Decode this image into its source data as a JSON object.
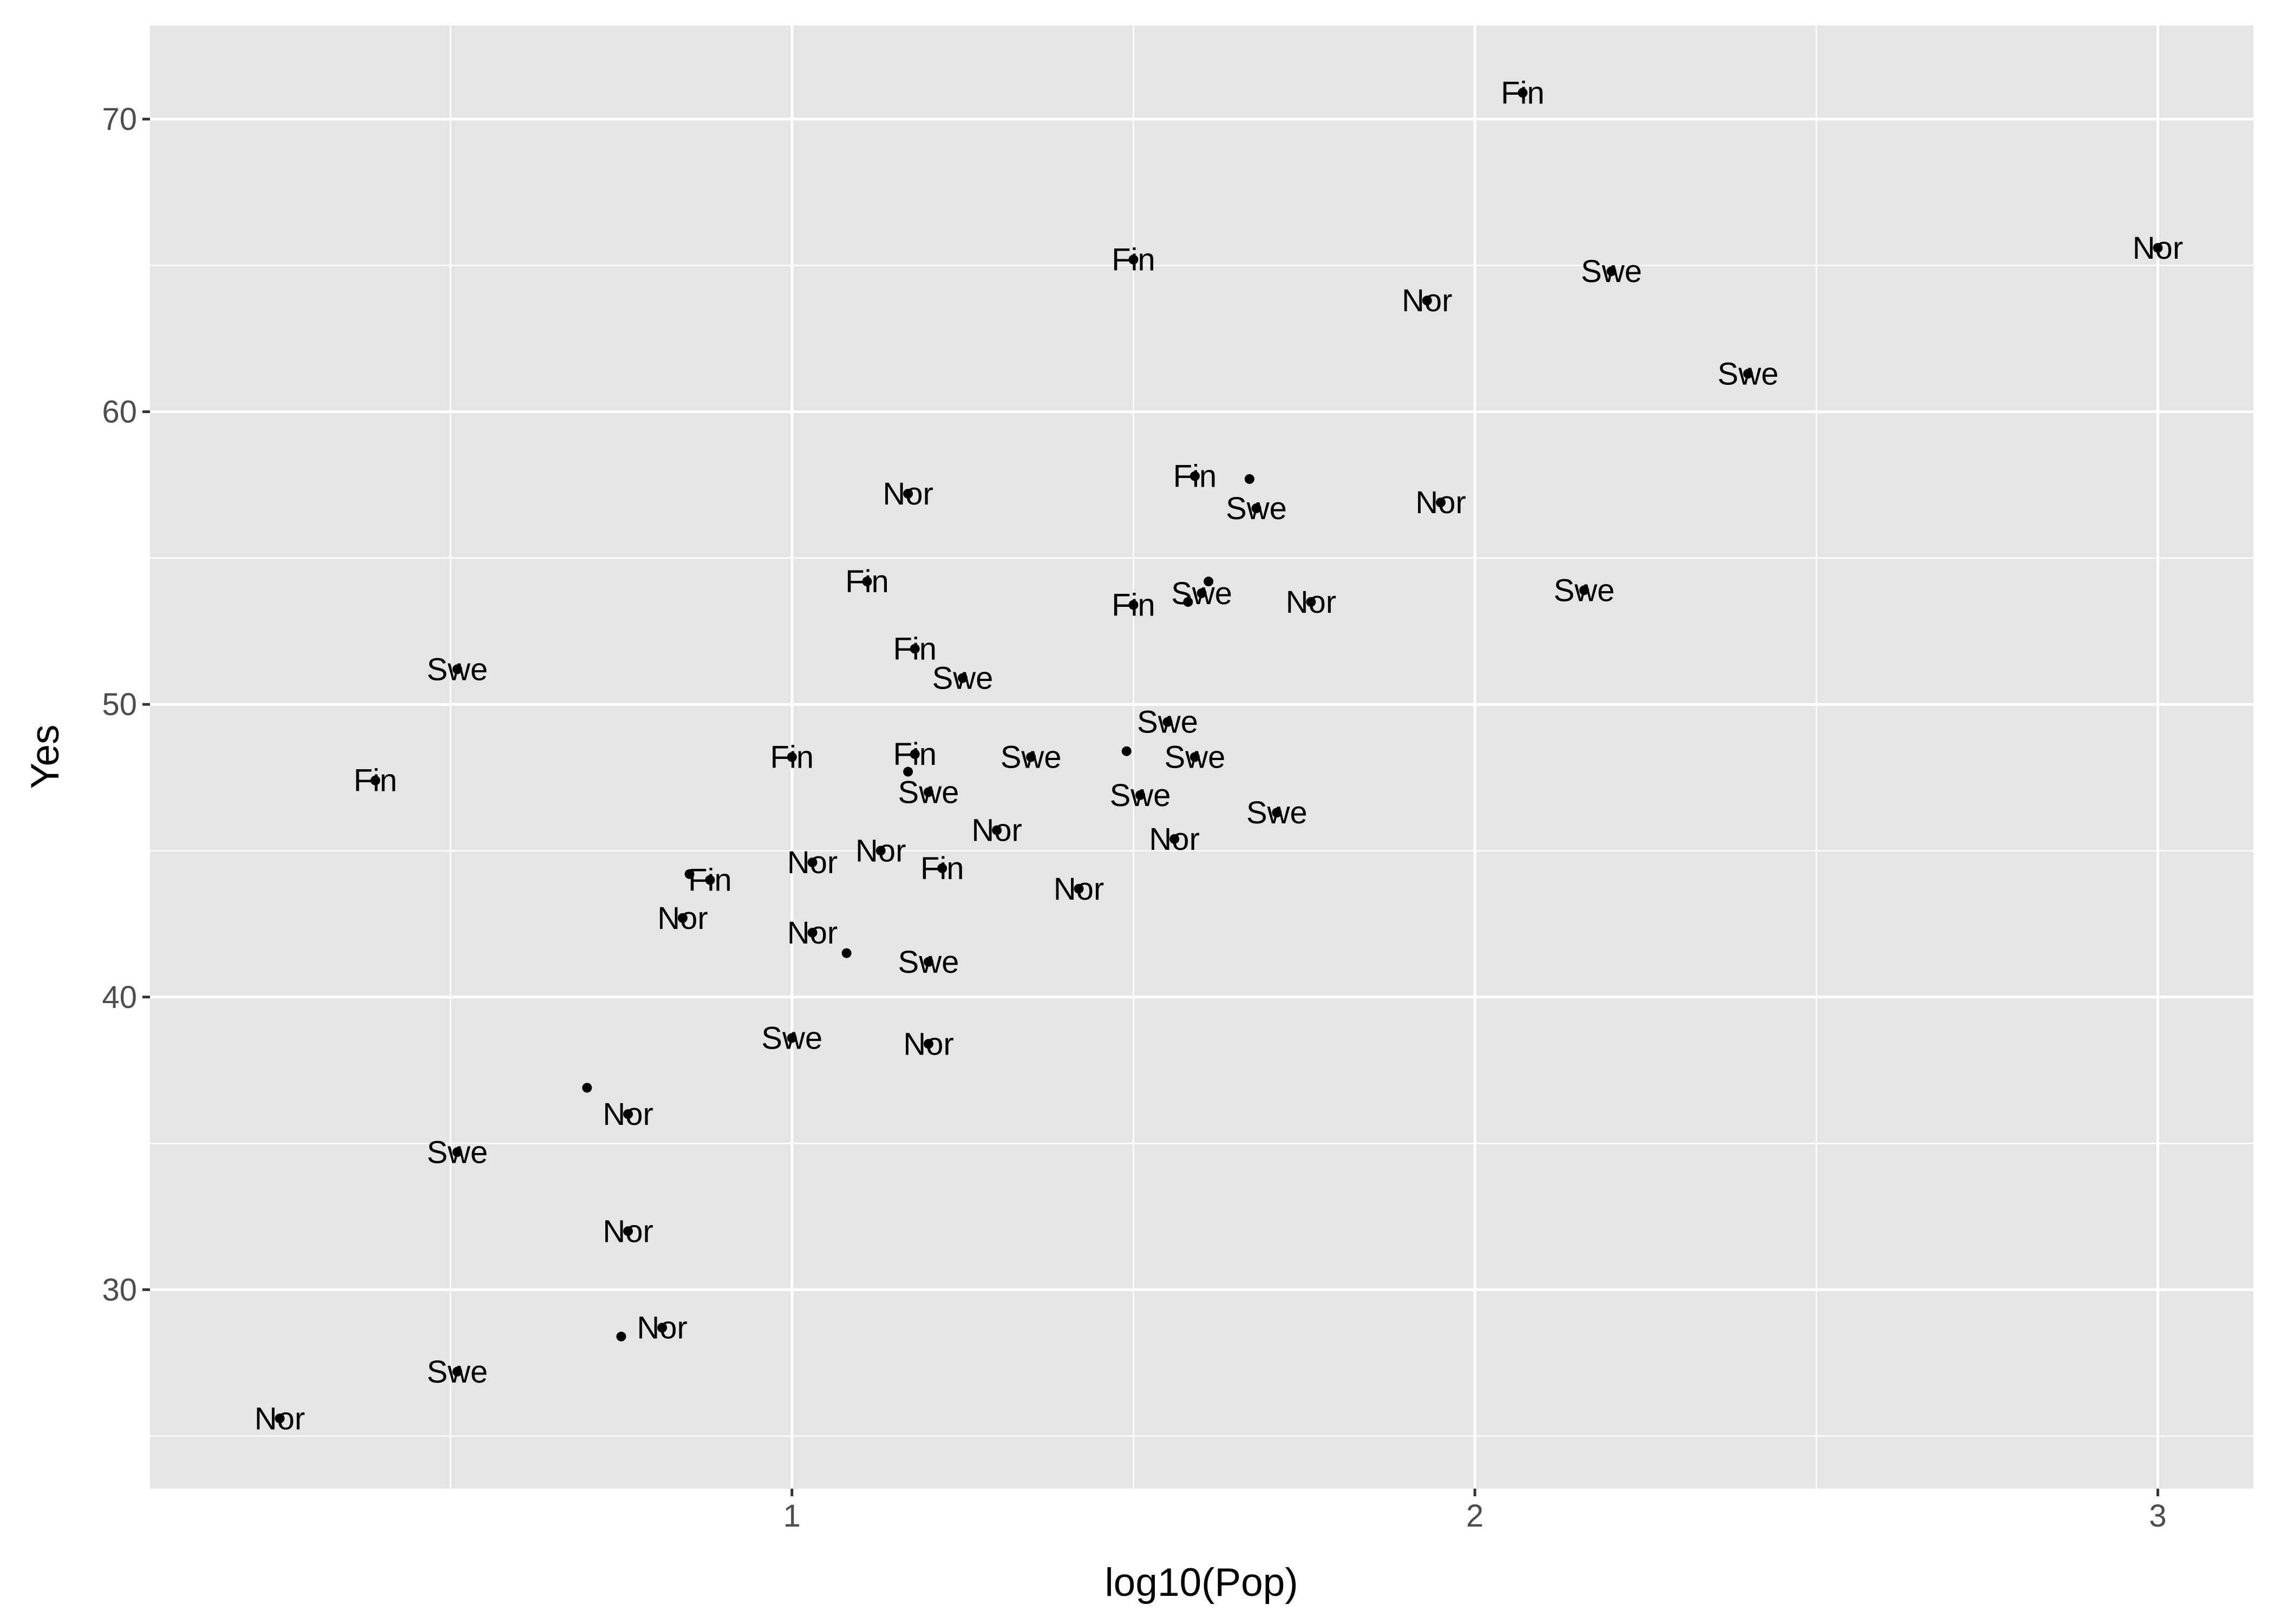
{
  "chart_data": {
    "type": "scatter",
    "xlabel": "log10(Pop)",
    "ylabel": "Yes",
    "xlim": [
      0.06,
      3.14
    ],
    "ylim": [
      23.2,
      73.2
    ],
    "x_ticks": [
      1,
      2,
      3
    ],
    "x_tick_labels": [
      "1",
      "2",
      "3"
    ],
    "y_ticks": [
      30,
      40,
      50,
      60,
      70
    ],
    "y_tick_labels": [
      "30",
      "40",
      "50",
      "60",
      "70"
    ],
    "grid": true,
    "legend": "none",
    "points": [
      {
        "x": 2.07,
        "y": 70.9,
        "label": "Fin"
      },
      {
        "x": 3.0,
        "y": 65.6,
        "label": "Nor"
      },
      {
        "x": 1.5,
        "y": 65.2,
        "label": "Fin"
      },
      {
        "x": 2.2,
        "y": 64.8,
        "label": "Swe"
      },
      {
        "x": 1.93,
        "y": 63.8,
        "label": "Nor"
      },
      {
        "x": 2.4,
        "y": 61.3,
        "label": "Swe"
      },
      {
        "x": 1.67,
        "y": 57.7,
        "label": ""
      },
      {
        "x": 1.59,
        "y": 57.8,
        "label": "Fin"
      },
      {
        "x": 1.17,
        "y": 57.2,
        "label": "Nor"
      },
      {
        "x": 1.95,
        "y": 56.9,
        "label": "Nor"
      },
      {
        "x": 1.68,
        "y": 56.7,
        "label": "Swe"
      },
      {
        "x": 1.11,
        "y": 54.2,
        "label": "Fin"
      },
      {
        "x": 1.61,
        "y": 54.2,
        "label": ""
      },
      {
        "x": 2.16,
        "y": 53.9,
        "label": "Swe"
      },
      {
        "x": 1.6,
        "y": 53.8,
        "label": "Swe"
      },
      {
        "x": 1.76,
        "y": 53.5,
        "label": "Nor"
      },
      {
        "x": 1.5,
        "y": 53.4,
        "label": "Fin"
      },
      {
        "x": 1.58,
        "y": 53.5,
        "label": ""
      },
      {
        "x": 1.18,
        "y": 51.9,
        "label": "Fin"
      },
      {
        "x": 0.51,
        "y": 51.2,
        "label": "Swe"
      },
      {
        "x": 1.25,
        "y": 50.9,
        "label": "Swe"
      },
      {
        "x": 1.55,
        "y": 49.4,
        "label": "Swe"
      },
      {
        "x": 1.49,
        "y": 48.4,
        "label": ""
      },
      {
        "x": 1.0,
        "y": 48.2,
        "label": "Fin"
      },
      {
        "x": 1.18,
        "y": 48.3,
        "label": "Fin"
      },
      {
        "x": 1.35,
        "y": 48.2,
        "label": "Swe"
      },
      {
        "x": 1.59,
        "y": 48.2,
        "label": "Swe"
      },
      {
        "x": 0.39,
        "y": 47.4,
        "label": "Fin"
      },
      {
        "x": 1.17,
        "y": 47.7,
        "label": ""
      },
      {
        "x": 1.2,
        "y": 47.0,
        "label": "Swe"
      },
      {
        "x": 1.51,
        "y": 46.9,
        "label": "Swe"
      },
      {
        "x": 1.71,
        "y": 46.3,
        "label": "Swe"
      },
      {
        "x": 1.3,
        "y": 45.7,
        "label": "Nor"
      },
      {
        "x": 1.56,
        "y": 45.4,
        "label": "Nor"
      },
      {
        "x": 1.13,
        "y": 45.0,
        "label": "Nor"
      },
      {
        "x": 1.03,
        "y": 44.6,
        "label": "Nor"
      },
      {
        "x": 1.22,
        "y": 44.4,
        "label": "Fin"
      },
      {
        "x": 0.85,
        "y": 44.2,
        "label": ""
      },
      {
        "x": 0.88,
        "y": 44.0,
        "label": "Fin"
      },
      {
        "x": 1.42,
        "y": 43.7,
        "label": "Nor"
      },
      {
        "x": 0.84,
        "y": 42.7,
        "label": "Nor"
      },
      {
        "x": 1.03,
        "y": 42.2,
        "label": "Nor"
      },
      {
        "x": 1.08,
        "y": 41.5,
        "label": ""
      },
      {
        "x": 1.2,
        "y": 41.2,
        "label": "Swe"
      },
      {
        "x": 1.0,
        "y": 38.6,
        "label": "Swe"
      },
      {
        "x": 1.2,
        "y": 38.4,
        "label": "Nor"
      },
      {
        "x": 0.7,
        "y": 36.9,
        "label": ""
      },
      {
        "x": 0.76,
        "y": 36.0,
        "label": "Nor"
      },
      {
        "x": 0.51,
        "y": 34.7,
        "label": "Swe"
      },
      {
        "x": 0.76,
        "y": 32.0,
        "label": "Nor"
      },
      {
        "x": 0.81,
        "y": 28.7,
        "label": "Nor"
      },
      {
        "x": 0.75,
        "y": 28.4,
        "label": ""
      },
      {
        "x": 0.51,
        "y": 27.2,
        "label": "Swe"
      },
      {
        "x": 0.25,
        "y": 25.6,
        "label": "Nor"
      }
    ]
  }
}
